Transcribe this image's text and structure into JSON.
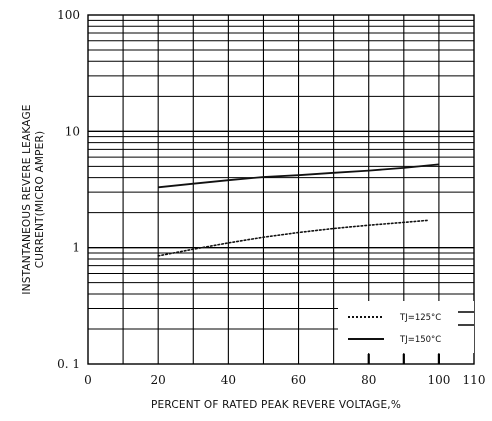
{
  "chart_data": {
    "type": "line",
    "title": "",
    "xlabel": "PERCENT OF RATED PEAK REVERE VOLTAGE,%",
    "ylabel": [
      "INSTANTANEOUS REVERE LEAKAGE",
      "CURRENT(MICRO AMPER)"
    ],
    "xlim": [
      0,
      110
    ],
    "ylim": [
      0.1,
      100
    ],
    "yscale": "log",
    "grid": true,
    "x_ticks": [
      {
        "value": 0,
        "label": "0"
      },
      {
        "value": 20,
        "label": "20"
      },
      {
        "value": 40,
        "label": "40"
      },
      {
        "value": 60,
        "label": "60"
      },
      {
        "value": 80,
        "label": "80"
      },
      {
        "value": 100,
        "label": "100"
      },
      {
        "value": 110,
        "label": "110"
      }
    ],
    "y_ticks": [
      {
        "value": 100,
        "label": "100"
      },
      {
        "value": 10,
        "label": "10"
      },
      {
        "value": 1,
        "label": "1"
      },
      {
        "value": 0.1,
        "label": "0. 1"
      }
    ],
    "legend_position": "bottom-right",
    "series": [
      {
        "name": "TJ=125°C",
        "style": "dotted",
        "color": "#111111",
        "x": [
          20,
          30,
          40,
          50,
          60,
          70,
          80,
          90,
          97
        ],
        "y": [
          0.85,
          0.97,
          1.1,
          1.23,
          1.35,
          1.46,
          1.56,
          1.65,
          1.72
        ]
      },
      {
        "name": "TJ=150°C",
        "style": "solid",
        "color": "#111111",
        "x": [
          20,
          30,
          40,
          50,
          60,
          70,
          80,
          90,
          100
        ],
        "y": [
          3.3,
          3.55,
          3.8,
          4.05,
          4.2,
          4.4,
          4.6,
          4.85,
          5.2
        ]
      }
    ]
  }
}
